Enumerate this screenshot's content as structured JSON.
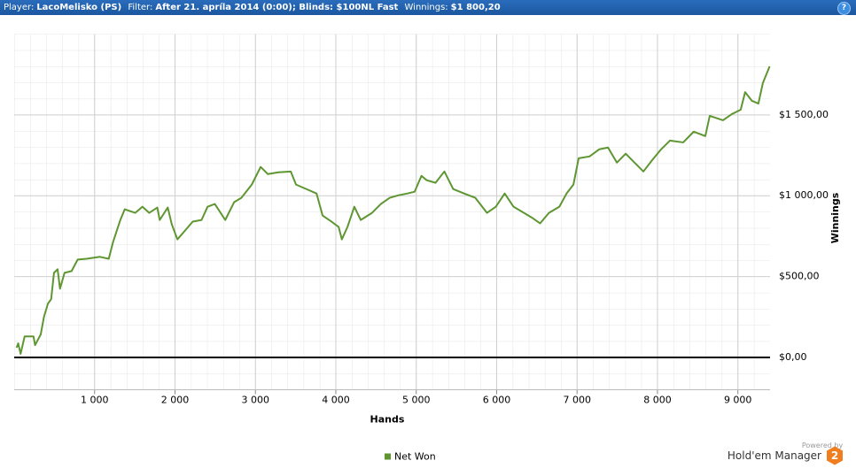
{
  "header": {
    "player_label": "Player:",
    "player": "LacoMelisko (PS)",
    "filter_label": "Filter:",
    "filter": "After 21. apríla 2014 (0:00); Blinds: $100NL Fast",
    "winnings_label": "Winnings:",
    "winnings": "$1 800,20",
    "help": "?"
  },
  "chart_data": {
    "type": "line",
    "x_label": "Hands",
    "y_label": "Winnings",
    "x": [
      30,
      50,
      80,
      130,
      240,
      260,
      330,
      370,
      420,
      460,
      495,
      540,
      570,
      626,
      714,
      790,
      900,
      1066,
      1176,
      1230,
      1320,
      1375,
      1505,
      1595,
      1680,
      1780,
      1810,
      1910,
      1960,
      2030,
      2145,
      2220,
      2330,
      2405,
      2495,
      2625,
      2735,
      2825,
      2955,
      3065,
      3155,
      3285,
      3440,
      3505,
      3635,
      3760,
      3835,
      3945,
      4035,
      4075,
      4145,
      4230,
      4310,
      4450,
      4560,
      4670,
      4780,
      4890,
      4980,
      5065,
      5130,
      5240,
      5350,
      5460,
      5595,
      5735,
      5880,
      5990,
      6100,
      6210,
      6340,
      6450,
      6540,
      6650,
      6780,
      6870,
      6955,
      7020,
      7155,
      7275,
      7385,
      7495,
      7605,
      7715,
      7825,
      7935,
      8045,
      8155,
      8320,
      8450,
      8595,
      8650,
      8815,
      8925,
      9035,
      9090,
      9175,
      9255,
      9310,
      9395
    ],
    "series": [
      {
        "name": "Net Won",
        "color": "#5e9632",
        "values": [
          60,
          87,
          22,
          130,
          130,
          76,
          142,
          250,
          333,
          360,
          523,
          545,
          425,
          523,
          534,
          605,
          610,
          622,
          610,
          714,
          850,
          916,
          894,
          932,
          894,
          927,
          850,
          927,
          823,
          730,
          796,
          840,
          850,
          932,
          949,
          850,
          960,
          987,
          1069,
          1178,
          1134,
          1145,
          1150,
          1069,
          1041,
          1014,
          878,
          840,
          807,
          730,
          807,
          932,
          850,
          894,
          949,
          987,
          1003,
          1014,
          1025,
          1123,
          1096,
          1080,
          1150,
          1041,
          1014,
          987,
          894,
          932,
          1014,
          932,
          894,
          861,
          829,
          894,
          932,
          1014,
          1069,
          1232,
          1243,
          1287,
          1298,
          1205,
          1260,
          1205,
          1150,
          1221,
          1287,
          1341,
          1330,
          1396,
          1369,
          1494,
          1467,
          1505,
          1532,
          1641,
          1587,
          1570,
          1696,
          1800.2
        ]
      }
    ],
    "xlim": [
      0,
      9400
    ],
    "xticks": [
      {
        "value": 1000,
        "label": "1 000"
      },
      {
        "value": 2000,
        "label": "2 000"
      },
      {
        "value": 3000,
        "label": "3 000"
      },
      {
        "value": 4000,
        "label": "4 000"
      },
      {
        "value": 5000,
        "label": "5 000"
      },
      {
        "value": 6000,
        "label": "6 000"
      },
      {
        "value": 7000,
        "label": "7 000"
      },
      {
        "value": 8000,
        "label": "8 000"
      },
      {
        "value": 9000,
        "label": "9 000"
      }
    ],
    "ylim": [
      -200,
      2000
    ],
    "yticks": [
      {
        "value": 0,
        "label": "$0,00"
      },
      {
        "value": 500,
        "label": "$500,00"
      },
      {
        "value": 1000,
        "label": "$1 000,00"
      },
      {
        "value": 1500,
        "label": "$1 500,00"
      }
    ],
    "grid": true,
    "zero_line": true,
    "legend": "bottom"
  },
  "footer": {
    "powered_by": "Powered by",
    "brand": "Hold'em Manager",
    "badge": "2"
  }
}
